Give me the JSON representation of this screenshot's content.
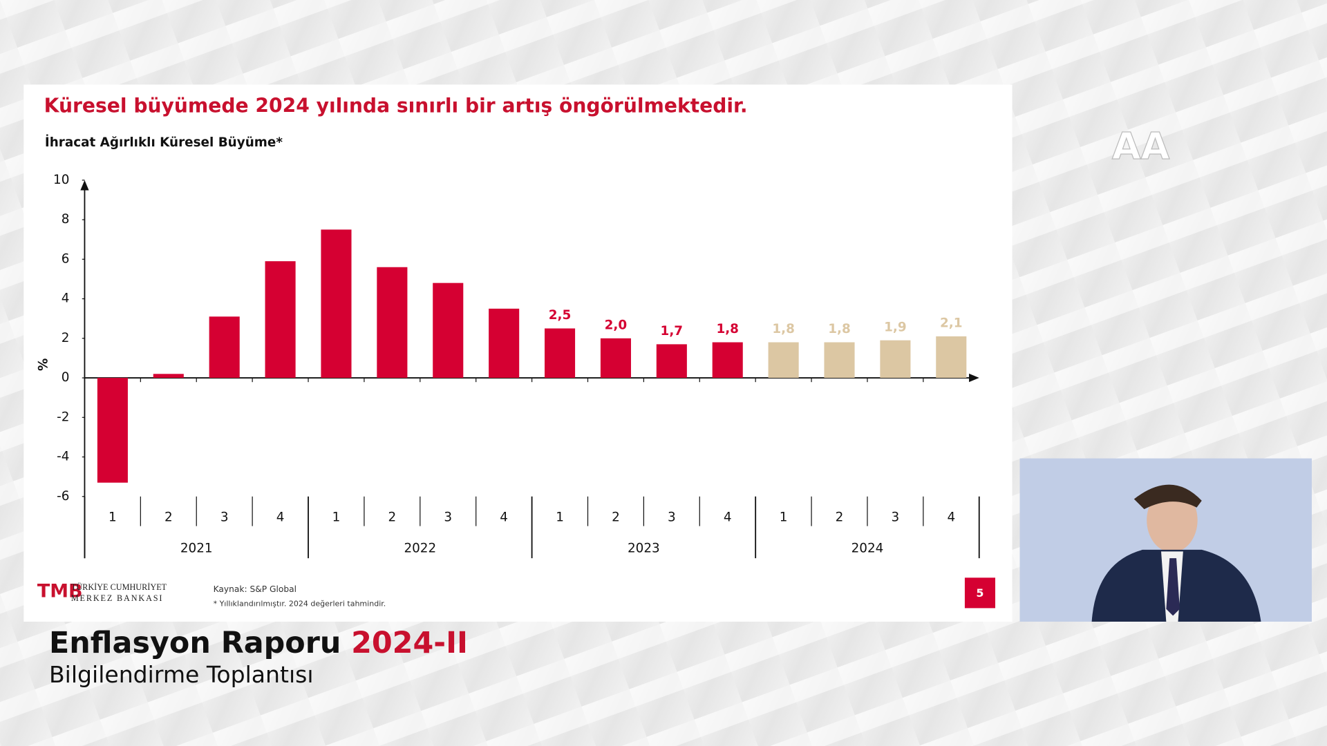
{
  "chart_data": {
    "type": "bar",
    "title": "Küresel büyümede 2024 yılında sınırlı bir artış öngörülmektedir.",
    "subtitle": "İhracat Ağırlıklı Küresel Büyüme*",
    "y_label": "%",
    "categories": [
      "1",
      "2",
      "3",
      "4",
      "1",
      "2",
      "3",
      "4",
      "1",
      "2",
      "3",
      "4",
      "1",
      "2",
      "3",
      "4"
    ],
    "groups": [
      "2021",
      "2022",
      "2023",
      "2024"
    ],
    "values": [
      -5.3,
      0.2,
      3.1,
      5.9,
      7.5,
      5.6,
      4.8,
      3.5,
      2.5,
      2.0,
      1.7,
      1.8,
      1.8,
      1.8,
      1.9,
      2.1
    ],
    "value_labels": [
      null,
      null,
      null,
      null,
      null,
      null,
      null,
      null,
      "2,5",
      "2,0",
      "1,7",
      "1,8",
      "1,8",
      "1,8",
      "1,9",
      "2,1"
    ],
    "colors": [
      "#d50032",
      "#d50032",
      "#d50032",
      "#d50032",
      "#d50032",
      "#d50032",
      "#d50032",
      "#d50032",
      "#d50032",
      "#d50032",
      "#d50032",
      "#d50032",
      "#dcc7a3",
      "#dcc7a3",
      "#dcc7a3",
      "#dcc7a3"
    ],
    "ylim": [
      -6,
      10
    ],
    "yticks": [
      -6,
      -4,
      -2,
      0,
      2,
      4,
      6,
      8,
      10
    ],
    "grid": false,
    "source": "Kaynak: S&P Global",
    "note": "* Yıllıklandırılmıştır. 2024 değerleri tahmindir."
  },
  "slide": {
    "bank_line1": "TÜRKİYE CUMHURİYET",
    "bank_line2": "MERKEZ BANKASI",
    "page": "5"
  },
  "banner": {
    "title": "Enflasyon Raporu",
    "edition": "2024-II",
    "subtitle": "Bilgilendirme Toplantısı"
  },
  "logo": "AA"
}
